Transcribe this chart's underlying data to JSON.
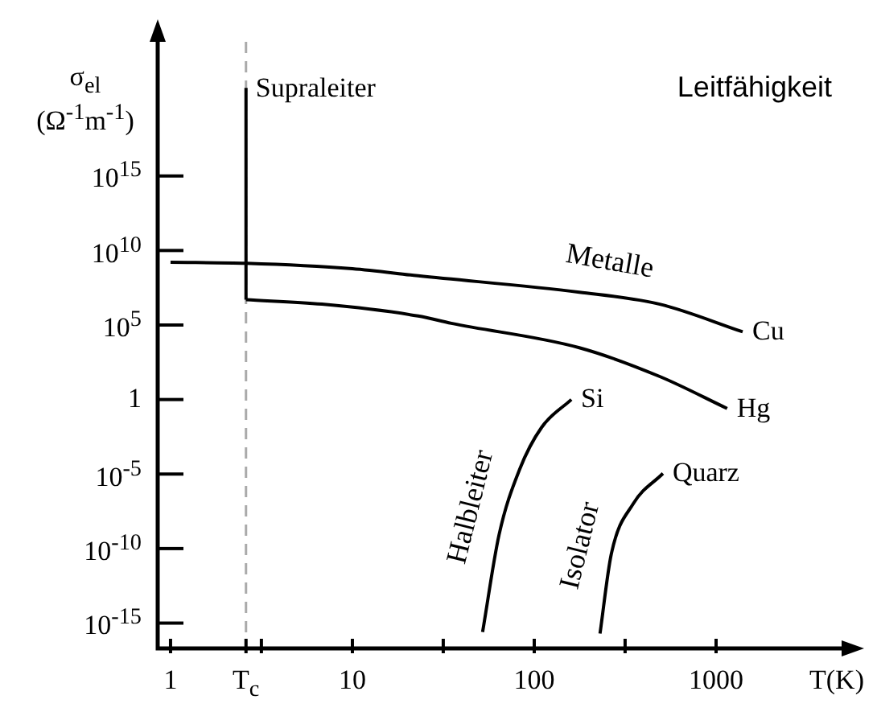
{
  "chart_data": {
    "type": "line",
    "title": "Leitfähigkeit",
    "xlabel": "T(K)",
    "ylabel": "σ$_{el}$ (Ω$^{-1}$m$^{-1}$)",
    "log": "xy",
    "xlim": [
      0.85,
      4900
    ],
    "ylim": [
      2e-17,
      1e+24
    ],
    "xticks": [
      1,
      {
        "value": 2.6,
        "label": "T$_{c}$"
      },
      {
        "value": 3.16,
        "label": null
      },
      10,
      {
        "value": 31.6,
        "label": null
      },
      100,
      {
        "value": 316,
        "label": null
      },
      1000
    ],
    "yticks": [
      {
        "value": 1e-15,
        "label": "10$^{-15}$"
      },
      {
        "value": 1e-10,
        "label": "10$^{-10}$"
      },
      {
        "value": 1e-05,
        "label": "10$^{-5}$"
      },
      1,
      {
        "value": 100000.0,
        "label": "10$^{5}$"
      },
      {
        "value": 10000000000.0,
        "label": "10$^{10}$"
      },
      {
        "value": 1000000000000000.0,
        "label": "10$^{15}$"
      }
    ],
    "grid": false,
    "legend": false,
    "marker": "none",
    "line_style": "solid",
    "ref_lines": [
      {
        "axis": "x",
        "value": 2.6,
        "color": "#aaaaaa",
        "line_style": "dashed"
      }
    ],
    "annotations": [
      "Metalle",
      "Halbleiter",
      "Isolator"
    ],
    "series": [
      {
        "name": "Supraleiter",
        "color": "#000000",
        "x": [
          2.6,
          2.6
        ],
        "values": [
          8e+20,
          5000000.0
        ]
      },
      {
        "name": "Cu",
        "color": "#000000",
        "x": [
          1,
          2.6,
          10,
          23,
          177,
          490,
          1400
        ],
        "values": [
          1600000000.0,
          1400000000.0,
          600000000.0,
          200000000.0,
          16000000.0,
          2500000.0,
          35000.0
        ]
      },
      {
        "name": "Hg",
        "color": "#000000",
        "x": [
          2.6,
          6.8,
          23,
          35,
          177,
          490,
          1150
        ],
        "values": [
          5000000.0,
          2500000.0,
          400000.0,
          130000.0,
          3000.0,
          35,
          0.25
        ]
      },
      {
        "name": "Si",
        "color": "#000000",
        "x": [
          52,
          64,
          83,
          110,
          160
        ],
        "values": [
          2.5e-16,
          8e-10,
          2e-05,
          0.014,
          1
        ]
      },
      {
        "name": "Quarz",
        "color": "#000000",
        "x": [
          230,
          265,
          350,
          510
        ],
        "values": [
          2e-16,
          4e-11,
          1e-07,
          1.1e-05
        ]
      }
    ]
  }
}
